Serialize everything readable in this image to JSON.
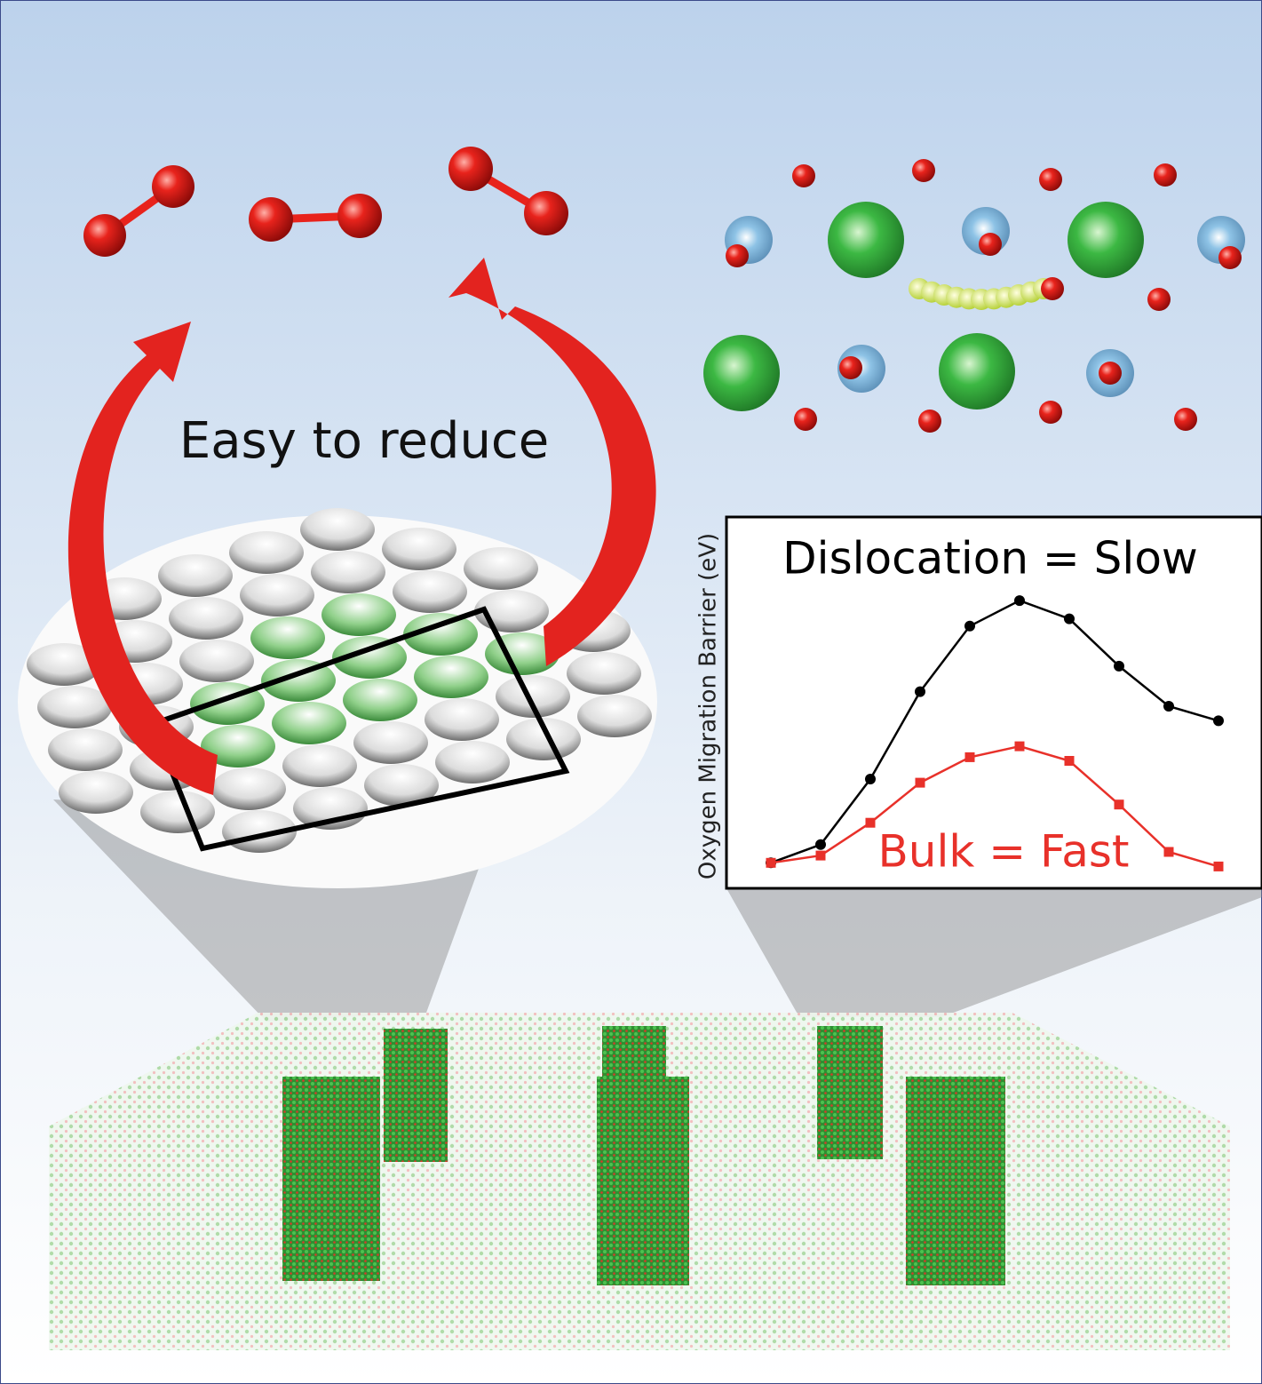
{
  "caption": "Easy to reduce",
  "chart_data": {
    "type": "line",
    "y_label": "Oxygen Migration Barrier (eV)",
    "categories": [
      null,
      null,
      null,
      null,
      null,
      null,
      null,
      null,
      null,
      null
    ],
    "ylim": [
      0,
      1
    ],
    "series": [
      {
        "name": "Dislocation = Slow",
        "color": "#000000",
        "marker": "circle",
        "values": [
          0.07,
          0.12,
          0.3,
          0.54,
          0.72,
          0.79,
          0.74,
          0.61,
          0.5,
          0.46
        ]
      },
      {
        "name": "Bulk = Fast",
        "color": "#e8312a",
        "marker": "square",
        "values": [
          0.07,
          0.09,
          0.18,
          0.29,
          0.36,
          0.39,
          0.35,
          0.23,
          0.1,
          0.06
        ]
      }
    ]
  }
}
